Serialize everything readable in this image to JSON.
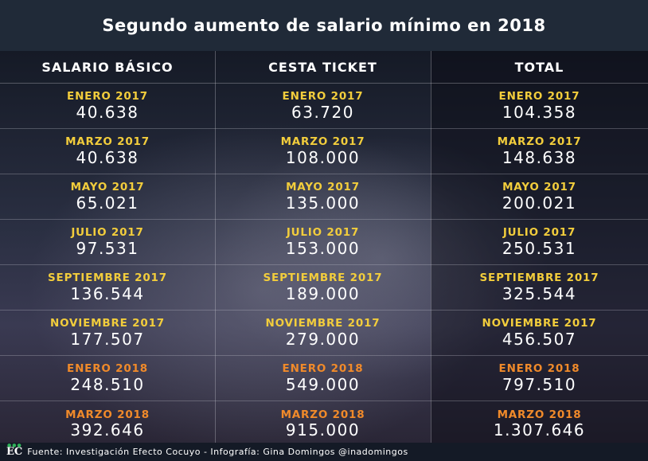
{
  "title": "Segundo aumento de salario mínimo en 2018",
  "colors": {
    "date_2017": "#f2cd3c",
    "date_2018": "#f08a2a",
    "value": "#ffffff"
  },
  "headers": [
    "SALARIO BÁSICO",
    "CESTA TICKET",
    "TOTAL"
  ],
  "rows": [
    {
      "period": "2017",
      "cells": [
        {
          "date": "ENERO 2017",
          "value": "40.638"
        },
        {
          "date": "ENERO 2017",
          "value": "63.720"
        },
        {
          "date": "ENERO 2017",
          "value": "104.358"
        }
      ]
    },
    {
      "period": "2017",
      "cells": [
        {
          "date": "MARZO 2017",
          "value": "40.638"
        },
        {
          "date": "MARZO 2017",
          "value": "108.000"
        },
        {
          "date": "MARZO 2017",
          "value": "148.638"
        }
      ]
    },
    {
      "period": "2017",
      "cells": [
        {
          "date": "MAYO 2017",
          "value": "65.021"
        },
        {
          "date": "MAYO 2017",
          "value": "135.000"
        },
        {
          "date": "MAYO 2017",
          "value": "200.021"
        }
      ]
    },
    {
      "period": "2017",
      "cells": [
        {
          "date": "JULIO 2017",
          "value": "97.531"
        },
        {
          "date": "JULIO 2017",
          "value": "153.000"
        },
        {
          "date": "JULIO 2017",
          "value": "250.531"
        }
      ]
    },
    {
      "period": "2017",
      "cells": [
        {
          "date": "SEPTIEMBRE 2017",
          "value": "136.544"
        },
        {
          "date": "SEPTIEMBRE 2017",
          "value": "189.000"
        },
        {
          "date": "SEPTIEMBRE 2017",
          "value": "325.544"
        }
      ]
    },
    {
      "period": "2017",
      "cells": [
        {
          "date": "NOVIEMBRE 2017",
          "value": "177.507"
        },
        {
          "date": "NOVIEMBRE 2017",
          "value": "279.000"
        },
        {
          "date": "NOVIEMBRE 2017",
          "value": "456.507"
        }
      ]
    },
    {
      "period": "2018",
      "cells": [
        {
          "date": "ENERO 2018",
          "value": "248.510"
        },
        {
          "date": "ENERO 2018",
          "value": "549.000"
        },
        {
          "date": "ENERO 2018",
          "value": "797.510"
        }
      ]
    },
    {
      "period": "2018",
      "cells": [
        {
          "date": "MARZO 2018",
          "value": "392.646"
        },
        {
          "date": "MARZO 2018",
          "value": "915.000"
        },
        {
          "date": "MARZO 2018",
          "value": "1.307.646"
        }
      ]
    }
  ],
  "footer": {
    "logo": "EC",
    "text": "Fuente: Investigación Efecto Cocuyo - Infografía: Gina Domingos @inadomingos"
  }
}
